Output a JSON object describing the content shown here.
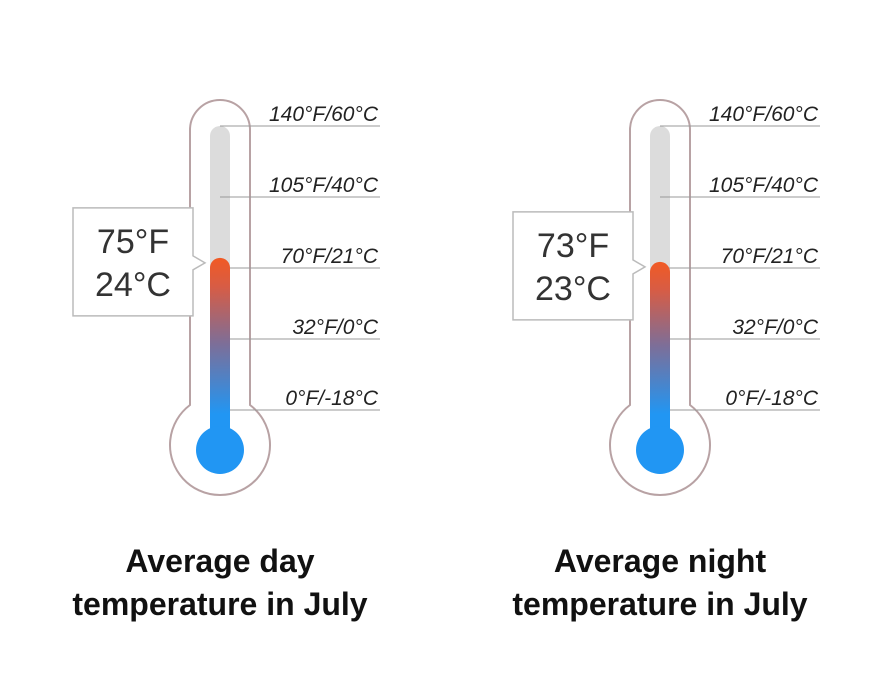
{
  "chart_data": [
    {
      "type": "thermometer",
      "value_f": 75,
      "value_c": 24,
      "readout": {
        "f": "75°F",
        "c": "24°C"
      },
      "title_lines": [
        "Average day",
        "temperature in July"
      ],
      "scale": [
        {
          "f": 140,
          "label": "140°F/60°C"
        },
        {
          "f": 105,
          "label": "105°F/40°C"
        },
        {
          "f": 70,
          "label": "70°F/21°C"
        },
        {
          "f": 32,
          "label": "32°F/0°C"
        },
        {
          "f": 0,
          "label": "0°F/-18°C"
        }
      ],
      "range_f": [
        0,
        140
      ]
    },
    {
      "type": "thermometer",
      "value_f": 73,
      "value_c": 23,
      "readout": {
        "f": "73°F",
        "c": "23°C"
      },
      "title_lines": [
        "Average night",
        "temperature in July"
      ],
      "scale": [
        {
          "f": 140,
          "label": "140°F/60°C"
        },
        {
          "f": 105,
          "label": "105°F/40°C"
        },
        {
          "f": 70,
          "label": "70°F/21°C"
        },
        {
          "f": 32,
          "label": "32°F/0°C"
        },
        {
          "f": 0,
          "label": "0°F/-18°C"
        }
      ],
      "range_f": [
        0,
        140
      ]
    }
  ],
  "colors": {
    "outline": "#b8a2a4",
    "tube": "#dcdcdc",
    "hot": "#f15a24",
    "cold": "#2196f3",
    "gridline": "#999999",
    "label_text": "#222222",
    "readout_text": "#333333",
    "readout_border": "#bbbbbb"
  }
}
